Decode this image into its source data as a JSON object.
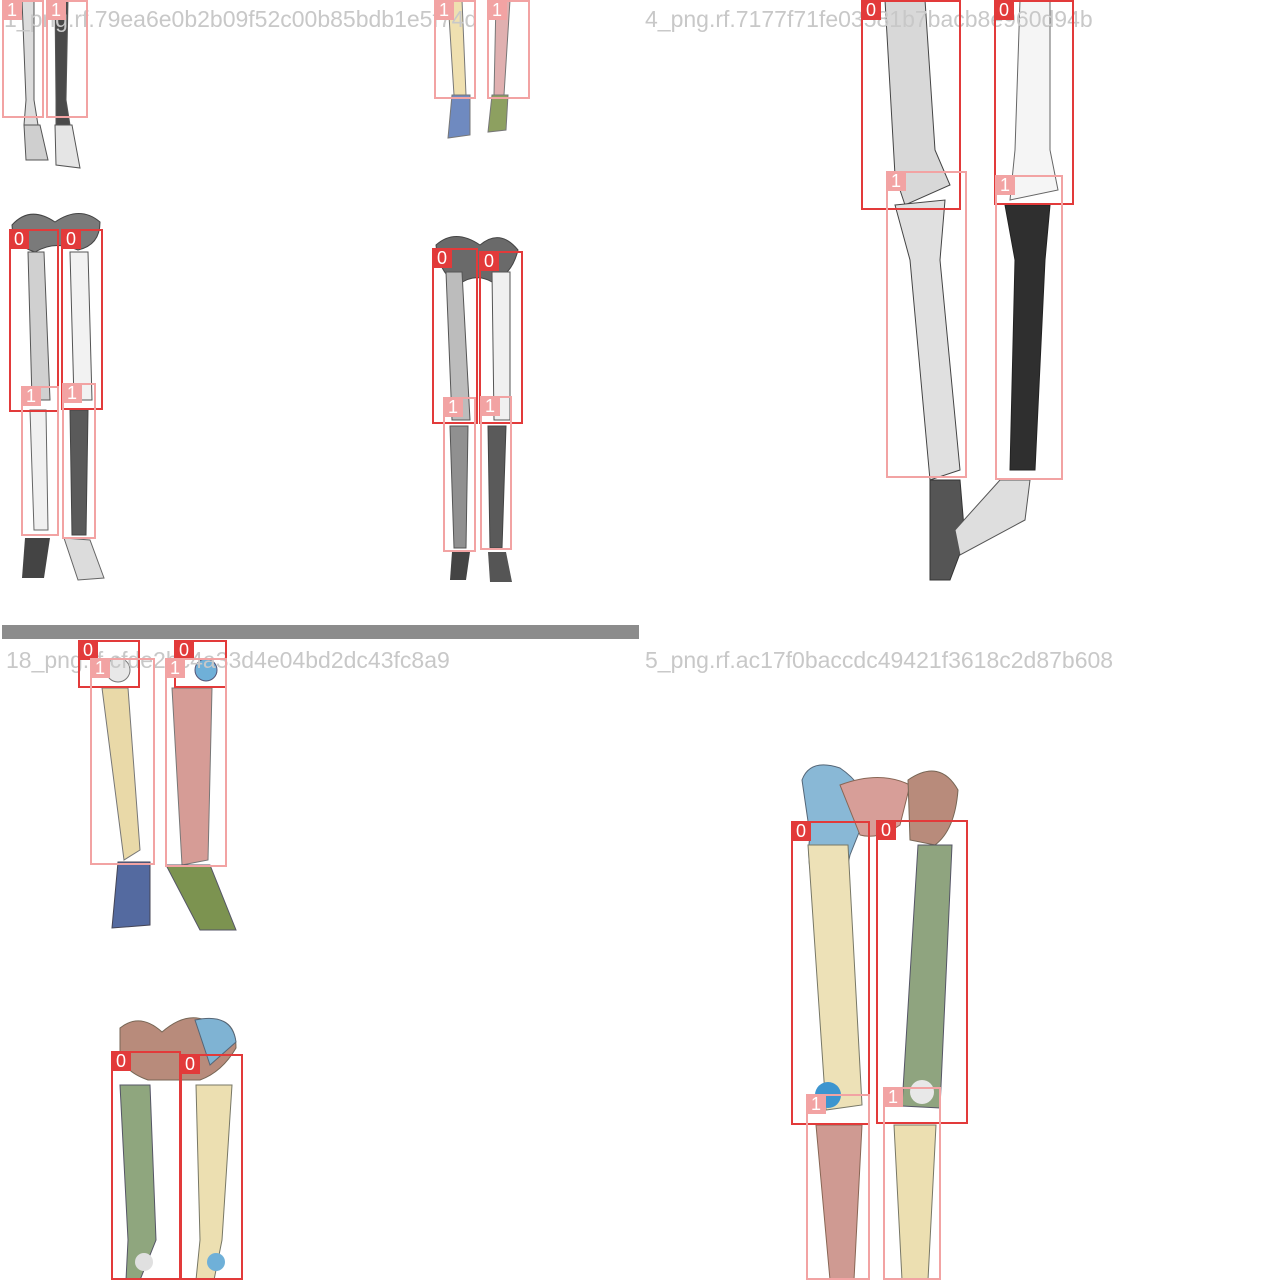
{
  "tiles": [
    {
      "title": "1_png.rf.79ea6e0b2b09f52c00b85bdb1e5f74d"
    },
    {
      "title": "4_png.rf.7177f71fe03581b7bacb8e960d94b"
    },
    {
      "title": "18_png.rf.cfde2bc4a33d4e04bd2dc43fc8a9"
    },
    {
      "title": "5_png.rf.ac17f0baccdc49421f3618c2d87b608"
    }
  ],
  "class_labels": {
    "femur": "0",
    "tibia": "1"
  },
  "colors": {
    "class0_box": "#e23a3a",
    "class1_box": "#f2a3a3",
    "separator": "#8c8c8c",
    "title": "#c8c8c8"
  }
}
